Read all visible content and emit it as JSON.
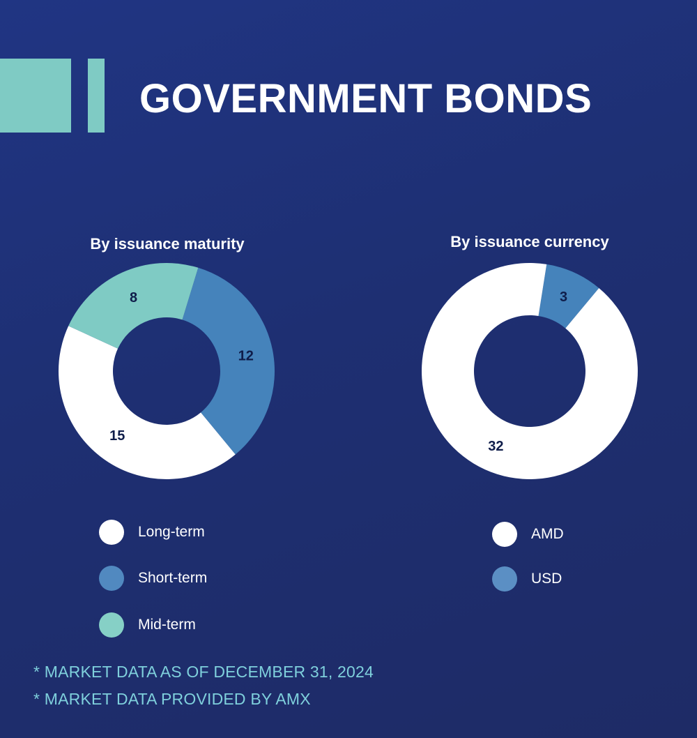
{
  "header": {
    "title": "GOVERNMENT BONDS"
  },
  "colors": {
    "background": "#1e2f72",
    "accent": "#7fcbc4",
    "footnote": "#7fd0dc",
    "label": "#0f1d4a"
  },
  "chart_data": [
    {
      "type": "pie",
      "variant": "donut",
      "title": "By issuance maturity",
      "series": [
        {
          "name": "Short-term",
          "value": 12,
          "color": "#4583bb"
        },
        {
          "name": "Long-term",
          "value": 15,
          "color": "#ffffff"
        },
        {
          "name": "Mid-term",
          "value": 8,
          "color": "#7fcbc4"
        }
      ],
      "legend": [
        {
          "name": "Long-term",
          "color": "#ffffff"
        },
        {
          "name": "Short-term",
          "color": "#5189c0"
        },
        {
          "name": "Mid-term",
          "color": "#86d0c6"
        }
      ],
      "legend_placement": "bottom"
    },
    {
      "type": "pie",
      "variant": "donut",
      "title": "By issuance currency",
      "series": [
        {
          "name": "USD",
          "value": 3,
          "color": "#4583bb"
        },
        {
          "name": "AMD",
          "value": 32,
          "color": "#ffffff"
        }
      ],
      "legend": [
        {
          "name": "AMD",
          "color": "#ffffff"
        },
        {
          "name": "USD",
          "color": "#5b8fc4"
        }
      ],
      "legend_placement": "bottom"
    }
  ],
  "footnotes": [
    "* MARKET DATA AS OF DECEMBER 31, 2024",
    "* MARKET DATA PROVIDED BY AMX"
  ]
}
